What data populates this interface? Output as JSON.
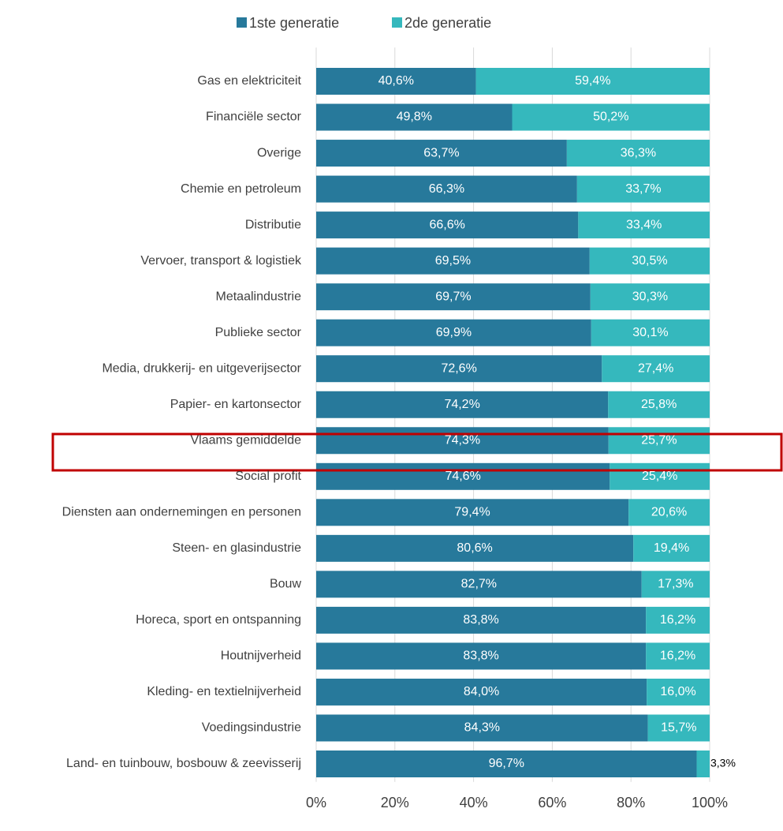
{
  "chart_data": {
    "type": "stacked_barh",
    "categories": [
      "Gas en elektriciteit",
      "Financiële sector",
      "Overige",
      "Chemie en petroleum",
      "Distributie",
      "Vervoer, transport & logistiek",
      "Metaalindustrie",
      "Publieke sector",
      "Media, drukkerij- en uitgeverijsector",
      "Papier- en kartonsector",
      "Vlaams gemiddelde",
      "Social profit",
      "Diensten aan ondernemingen en personen",
      "Steen- en glasindustrie",
      "Bouw",
      "Horeca, sport en ontspanning",
      "Houtnijverheid",
      "Kleding- en textielnijverheid",
      "Voedingsindustrie",
      "Land- en tuinbouw, bosbouw & zeevisserij"
    ],
    "series": [
      {
        "name": "1ste generatie",
        "color": "#27799b",
        "values": [
          40.6,
          49.8,
          63.7,
          66.3,
          66.6,
          69.5,
          69.7,
          69.9,
          72.6,
          74.2,
          74.3,
          74.6,
          79.4,
          80.6,
          82.7,
          83.8,
          83.8,
          84.0,
          84.3,
          96.7
        ],
        "value_labels": [
          "40,6%",
          "49,8%",
          "63,7%",
          "66,3%",
          "66,6%",
          "69,5%",
          "69,7%",
          "69,9%",
          "72,6%",
          "74,2%",
          "74,3%",
          "74,6%",
          "79,4%",
          "80,6%",
          "82,7%",
          "83,8%",
          "83,8%",
          "84,0%",
          "84,3%",
          "96,7%"
        ]
      },
      {
        "name": "2de generatie",
        "color": "#35b8bd",
        "values": [
          59.4,
          50.2,
          36.3,
          33.7,
          33.4,
          30.5,
          30.3,
          30.1,
          27.4,
          25.8,
          25.7,
          25.4,
          20.6,
          19.4,
          17.3,
          16.2,
          16.2,
          16.0,
          15.7,
          3.3
        ],
        "value_labels": [
          "59,4%",
          "50,2%",
          "36,3%",
          "33,7%",
          "33,4%",
          "30,5%",
          "30,3%",
          "30,1%",
          "27,4%",
          "25,8%",
          "25,7%",
          "25,4%",
          "20,6%",
          "19,4%",
          "17,3%",
          "16,2%",
          "16,2%",
          "16,0%",
          "15,7%",
          "3,3%"
        ]
      }
    ],
    "xlim": [
      0,
      100
    ],
    "xticks": [
      {
        "value": 0,
        "label": "0%"
      },
      {
        "value": 20,
        "label": "20%"
      },
      {
        "value": 40,
        "label": "40%"
      },
      {
        "value": 60,
        "label": "60%"
      },
      {
        "value": 80,
        "label": "80%"
      },
      {
        "value": 100,
        "label": "100%"
      }
    ],
    "grid": true,
    "legend": "top"
  }
}
